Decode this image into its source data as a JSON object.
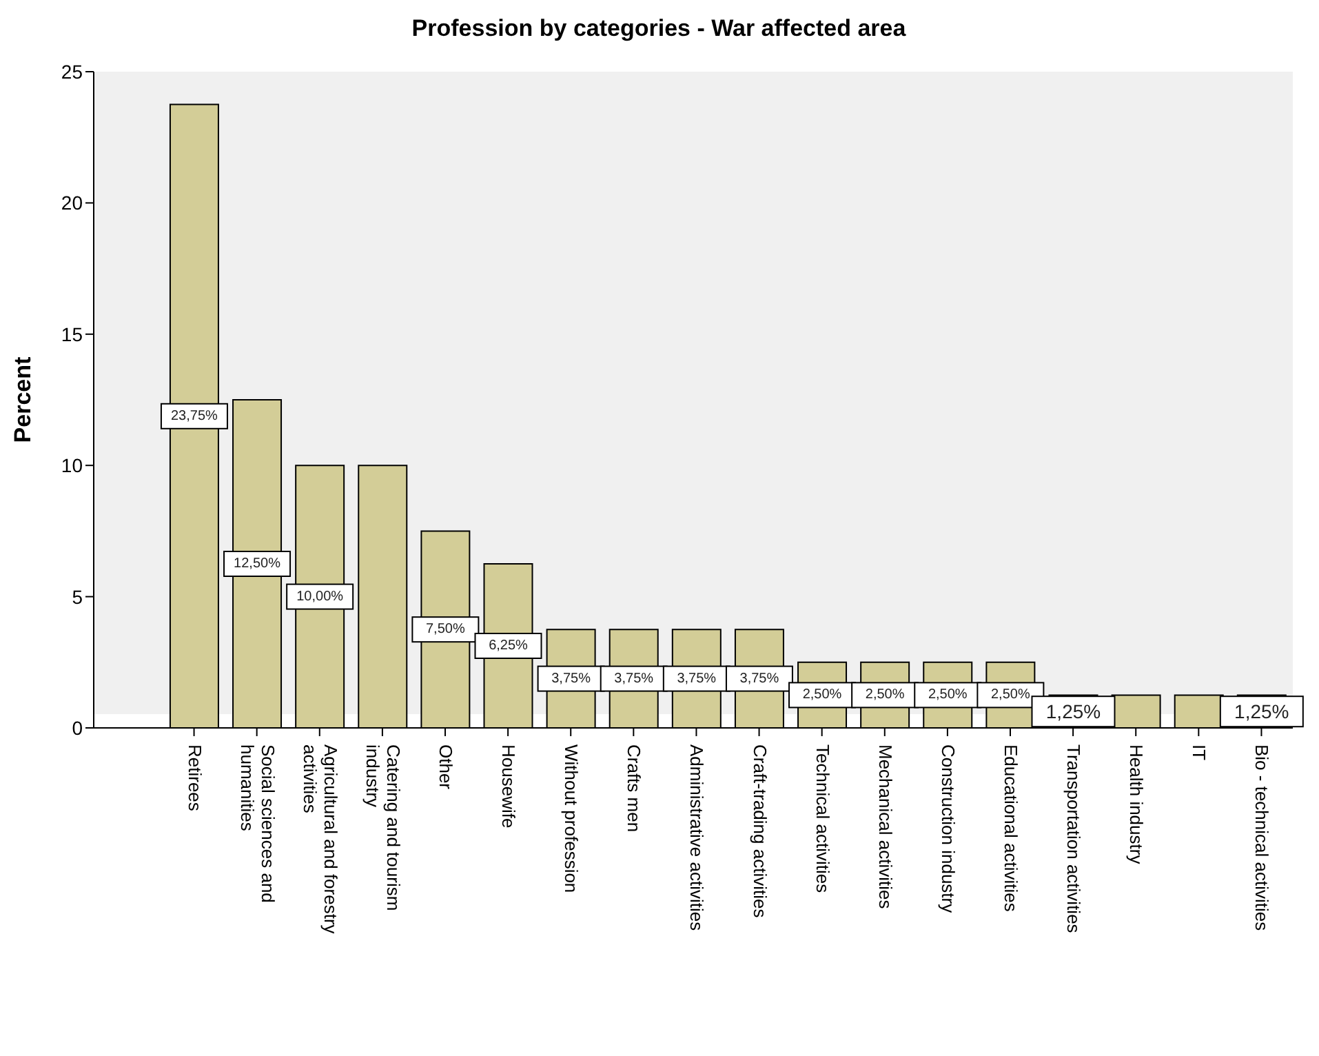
{
  "chart_data": {
    "type": "bar",
    "title": "Profession by categories - War affected area",
    "ylabel": "Percent",
    "categories": [
      "Retirees",
      "Social sciences and humanities",
      "Agricultural and forestry activities",
      "Catering and tourism industry",
      "Other",
      "Housewife",
      "Without profession",
      "Crafts men",
      "Administrative activities",
      "Craft-trading activities",
      "Technical activities",
      "Mechanical activities",
      "Construction industry",
      "Educational activities",
      "Transportation activities",
      "Health industry",
      "IT",
      "Bio - technical activities"
    ],
    "values": [
      23.75,
      12.5,
      10,
      10,
      7.5,
      6.25,
      3.75,
      3.75,
      3.75,
      3.75,
      2.5,
      2.5,
      2.5,
      2.5,
      1.25,
      1.25,
      1.25,
      1.25
    ],
    "value_labels": [
      "23,75%",
      "12,50%",
      "10,00%",
      null,
      "7,50%",
      "6,25%",
      "3,75%",
      "3,75%",
      "3,75%",
      "3,75%",
      "2,50%",
      "2,50%",
      "2,50%",
      "2,50%",
      "1,25%",
      null,
      null,
      "1,25%"
    ],
    "color": "#d3cd97",
    "ylim": [
      0,
      25
    ],
    "yticks": [
      0,
      5,
      10,
      15,
      20,
      25
    ],
    "grid": false,
    "legend": false
  }
}
